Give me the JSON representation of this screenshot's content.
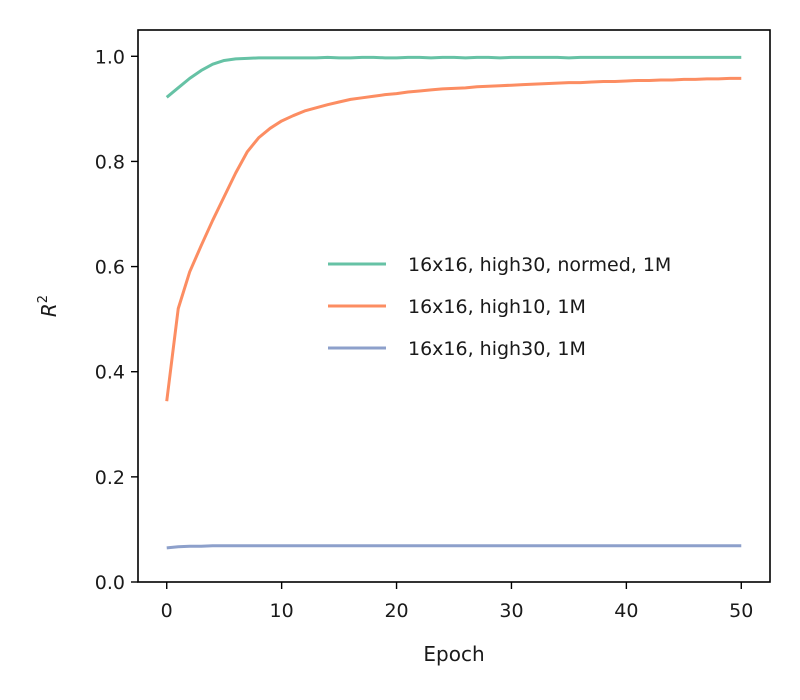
{
  "chart_data": {
    "type": "line",
    "title": "",
    "xlabel": "Epoch",
    "ylabel": "R",
    "ylabel_superscript": "2",
    "xlim": [
      -2.5,
      52.5
    ],
    "ylim": [
      0.0,
      1.05
    ],
    "xticks": [
      0,
      10,
      20,
      30,
      40,
      50
    ],
    "xtick_labels": [
      "0",
      "10",
      "20",
      "30",
      "40",
      "50"
    ],
    "yticks": [
      0.0,
      0.2,
      0.4,
      0.6,
      0.8,
      1.0
    ],
    "ytick_labels": [
      "0.0",
      "0.2",
      "0.4",
      "0.6",
      "0.8",
      "1.0"
    ],
    "grid": false,
    "legend_position": "center-right",
    "x": [
      0,
      1,
      2,
      3,
      4,
      5,
      6,
      7,
      8,
      9,
      10,
      11,
      12,
      13,
      14,
      15,
      16,
      17,
      18,
      19,
      20,
      21,
      22,
      23,
      24,
      25,
      26,
      27,
      28,
      29,
      30,
      31,
      32,
      33,
      34,
      35,
      36,
      37,
      38,
      39,
      40,
      41,
      42,
      43,
      44,
      45,
      46,
      47,
      48,
      49,
      50
    ],
    "series": [
      {
        "name": "16x16, high30, normed, 1M",
        "color": "#66c2a5",
        "values": [
          0.922,
          0.94,
          0.958,
          0.973,
          0.985,
          0.992,
          0.995,
          0.996,
          0.997,
          0.997,
          0.997,
          0.997,
          0.997,
          0.997,
          0.998,
          0.997,
          0.997,
          0.998,
          0.998,
          0.997,
          0.997,
          0.998,
          0.998,
          0.997,
          0.998,
          0.998,
          0.997,
          0.998,
          0.998,
          0.997,
          0.998,
          0.998,
          0.998,
          0.998,
          0.998,
          0.997,
          0.998,
          0.998,
          0.998,
          0.998,
          0.998,
          0.998,
          0.998,
          0.998,
          0.998,
          0.998,
          0.998,
          0.998,
          0.998,
          0.998,
          0.998
        ]
      },
      {
        "name": "16x16, high10, 1M",
        "color": "#fc8d62",
        "values": [
          0.344,
          0.52,
          0.59,
          0.64,
          0.688,
          0.733,
          0.778,
          0.818,
          0.845,
          0.863,
          0.877,
          0.887,
          0.896,
          0.902,
          0.908,
          0.913,
          0.918,
          0.921,
          0.924,
          0.927,
          0.929,
          0.932,
          0.934,
          0.936,
          0.938,
          0.939,
          0.94,
          0.942,
          0.943,
          0.944,
          0.945,
          0.946,
          0.947,
          0.948,
          0.949,
          0.95,
          0.95,
          0.951,
          0.952,
          0.952,
          0.953,
          0.954,
          0.954,
          0.955,
          0.955,
          0.956,
          0.956,
          0.957,
          0.957,
          0.958,
          0.958
        ]
      },
      {
        "name": "16x16, high30, 1M",
        "color": "#8da0cb",
        "values": [
          0.065,
          0.067,
          0.068,
          0.068,
          0.069,
          0.069,
          0.069,
          0.069,
          0.069,
          0.069,
          0.069,
          0.069,
          0.069,
          0.069,
          0.069,
          0.069,
          0.069,
          0.069,
          0.069,
          0.069,
          0.069,
          0.069,
          0.069,
          0.069,
          0.069,
          0.069,
          0.069,
          0.069,
          0.069,
          0.069,
          0.069,
          0.069,
          0.069,
          0.069,
          0.069,
          0.069,
          0.069,
          0.069,
          0.069,
          0.069,
          0.069,
          0.069,
          0.069,
          0.069,
          0.069,
          0.069,
          0.069,
          0.069,
          0.069,
          0.069,
          0.069
        ]
      }
    ]
  }
}
